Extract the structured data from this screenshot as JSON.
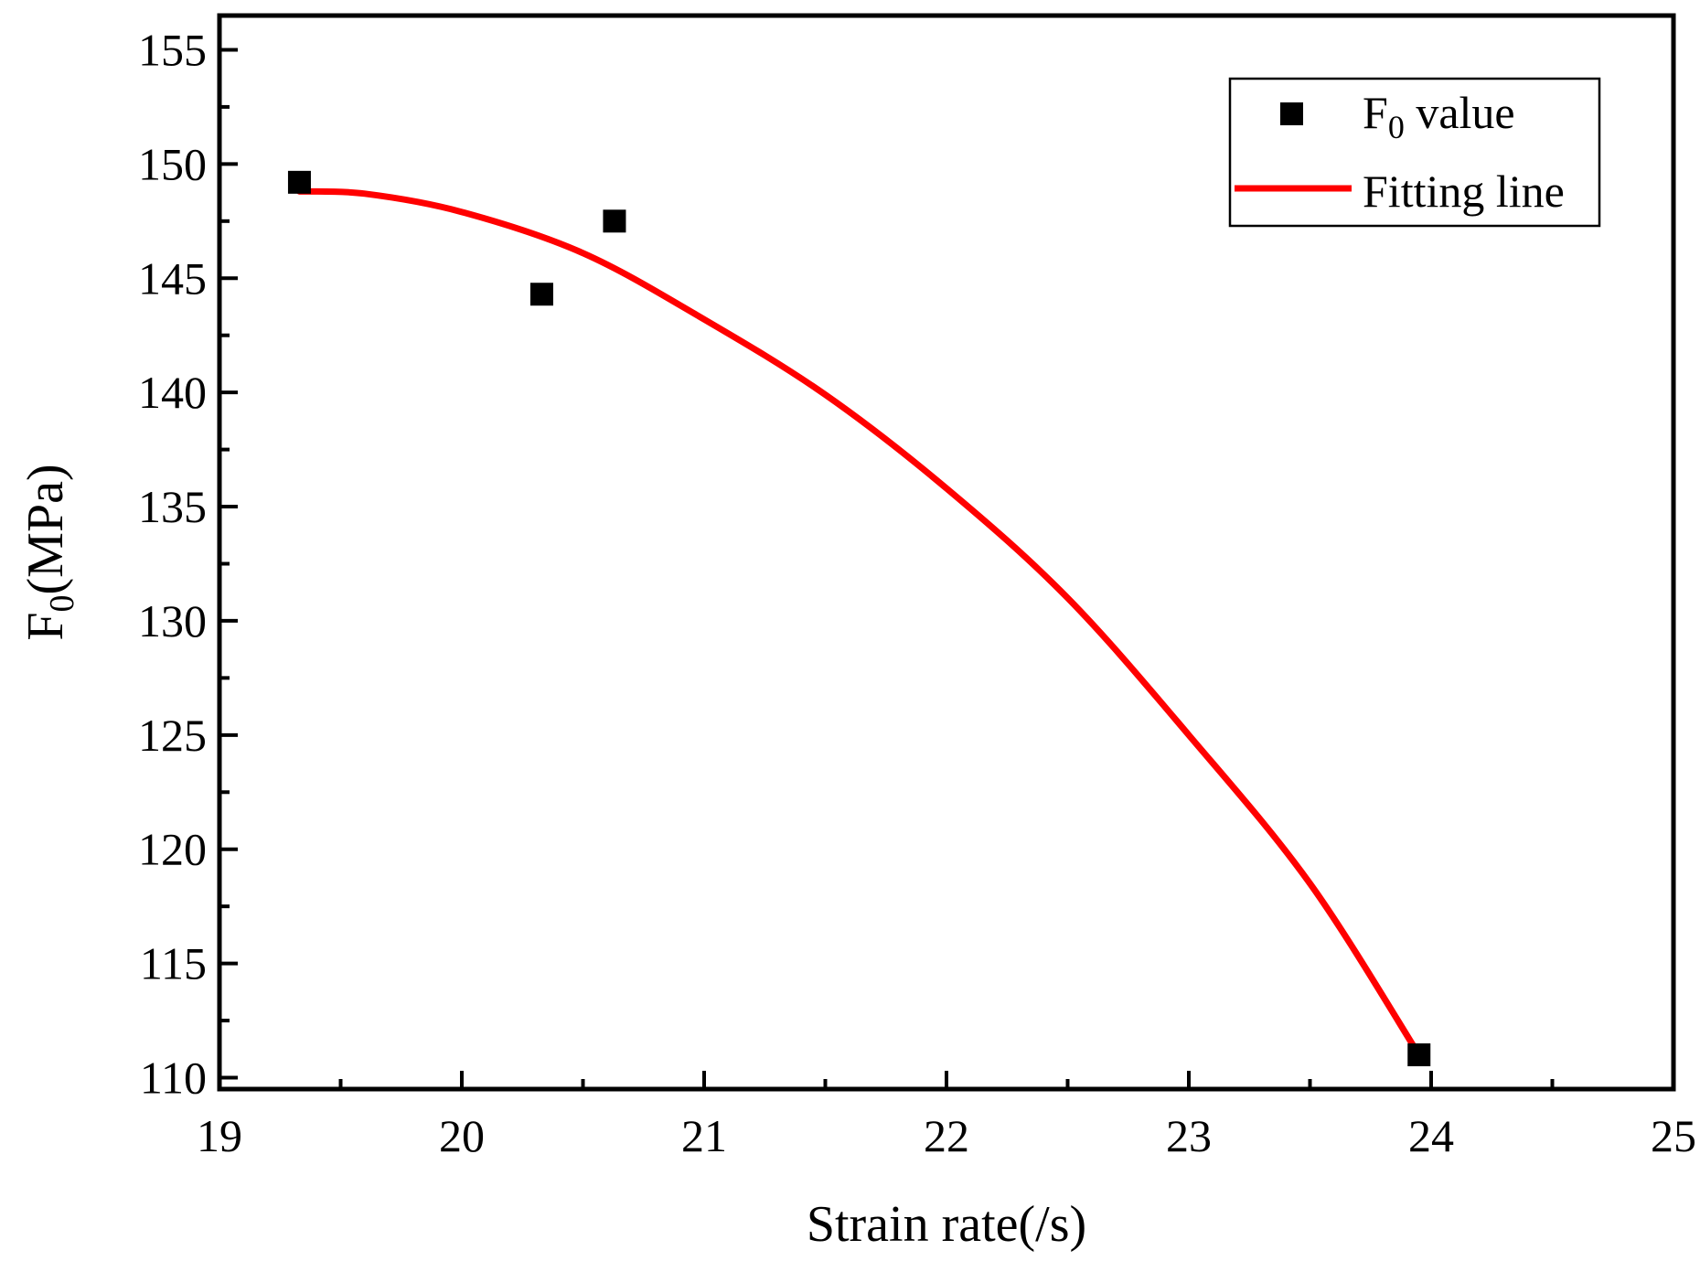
{
  "chart_data": {
    "type": "scatter",
    "xlabel": "Strain rate(/s)",
    "ylabel": {
      "main": "F",
      "sub": "0",
      "unit": "(MPa)"
    },
    "xlim": [
      19,
      25
    ],
    "ylim": [
      109.5,
      156.5
    ],
    "x_ticks": [
      19,
      20,
      21,
      22,
      23,
      24,
      25
    ],
    "x_tick_labels": [
      "19",
      "20",
      "21",
      "22",
      "23",
      "24",
      "25"
    ],
    "y_ticks": [
      110,
      115,
      120,
      125,
      130,
      135,
      140,
      145,
      150,
      155
    ],
    "y_tick_labels": [
      "110",
      "115",
      "120",
      "125",
      "130",
      "135",
      "140",
      "145",
      "150",
      "155"
    ],
    "x_minor_step": 0.5,
    "y_minor_step": 2.5,
    "grid": false,
    "legend_position": "top-right",
    "series": [
      {
        "name": "F0 value",
        "label_main": "F",
        "label_sub": "0",
        "label_rest": " value",
        "kind": "scatter",
        "marker": "square",
        "color": "#000000",
        "points": [
          {
            "x": 19.33,
            "y": 149.2
          },
          {
            "x": 20.33,
            "y": 144.3
          },
          {
            "x": 20.63,
            "y": 147.5
          },
          {
            "x": 23.95,
            "y": 111.0
          }
        ]
      },
      {
        "name": "Fitting line",
        "label_main": "Fitting line",
        "kind": "line",
        "color": "#ff0000",
        "points": [
          {
            "x": 19.33,
            "y": 148.8
          },
          {
            "x": 19.6,
            "y": 148.7
          },
          {
            "x": 20.0,
            "y": 147.9
          },
          {
            "x": 20.5,
            "y": 146.1
          },
          {
            "x": 21.0,
            "y": 143.2
          },
          {
            "x": 21.5,
            "y": 139.9
          },
          {
            "x": 22.0,
            "y": 135.8
          },
          {
            "x": 22.5,
            "y": 131.0
          },
          {
            "x": 23.0,
            "y": 125.0
          },
          {
            "x": 23.5,
            "y": 118.5
          },
          {
            "x": 23.95,
            "y": 111.0
          }
        ]
      }
    ]
  }
}
